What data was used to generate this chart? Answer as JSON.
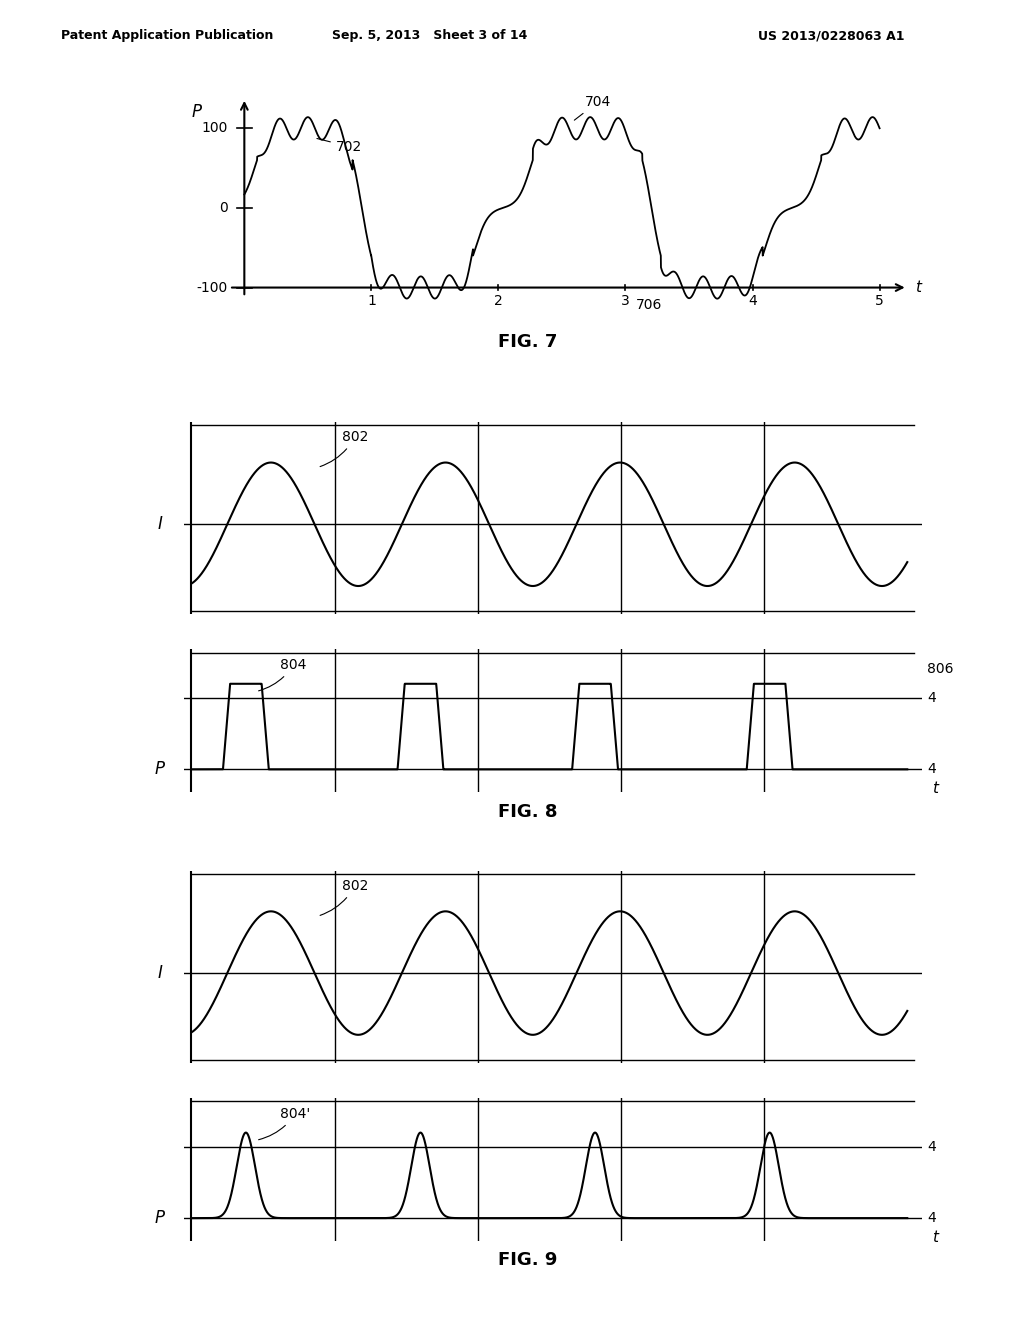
{
  "header_left": "Patent Application Publication",
  "header_center": "Sep. 5, 2013   Sheet 3 of 14",
  "header_right": "US 2013/0228063 A1",
  "fig7": {
    "title": "FIG. 7",
    "ylabel": "P",
    "xlabel": "t",
    "yticks": [
      -100,
      0,
      100
    ],
    "xticks": [
      1,
      2,
      3,
      4,
      5
    ],
    "label_702": "702",
    "label_704": "704",
    "label_706": "706"
  },
  "fig8": {
    "title": "FIG. 8",
    "ylabel_top": "I",
    "ylabel_bot": "P",
    "label_802": "802",
    "label_804": "804",
    "label_806": "806"
  },
  "fig9": {
    "title": "FIG. 9",
    "ylabel_top": "I",
    "ylabel_bot": "P",
    "label_802": "802",
    "label_804p": "804'"
  },
  "bg_color": "#ffffff",
  "line_color": "#000000"
}
